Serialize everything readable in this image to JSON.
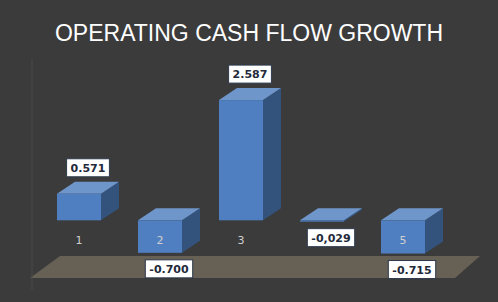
{
  "chart_data": {
    "type": "bar",
    "title": "OPERATING CASH FLOW GROWTH",
    "categories": [
      "1",
      "2",
      "3",
      null,
      "5"
    ],
    "values": [
      0.571,
      -0.7,
      2.587,
      -0.029,
      -0.715
    ],
    "value_labels": [
      "0.571",
      "-0.700",
      "2.587",
      "-0,029",
      "-0.715"
    ],
    "color": "#4f7fc0",
    "ylim": [
      -1.5,
      3.45
    ],
    "data_labels": true,
    "tick_labels": "x",
    "grid": false
  }
}
